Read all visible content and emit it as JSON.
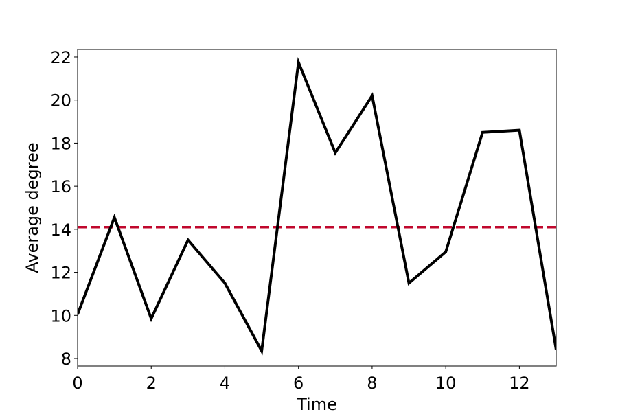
{
  "chart_data": {
    "type": "line",
    "title": "",
    "xlabel": "Time",
    "ylabel": "Average degree",
    "xlim": [
      0,
      13
    ],
    "ylim": [
      7.65,
      22.35
    ],
    "xticks": [
      0,
      2,
      4,
      6,
      8,
      10,
      12
    ],
    "yticks": [
      8,
      10,
      12,
      14,
      16,
      18,
      20,
      22
    ],
    "grid": false,
    "series": [
      {
        "color": "#000000",
        "style": "solid",
        "x": [
          0,
          1,
          2,
          3,
          4,
          5,
          6,
          7,
          8,
          9,
          10,
          11,
          12,
          13
        ],
        "y": [
          10.05,
          14.55,
          9.85,
          13.5,
          11.5,
          8.35,
          21.75,
          17.55,
          20.2,
          11.5,
          12.95,
          18.5,
          18.6,
          8.4
        ]
      }
    ],
    "reference_lines": [
      {
        "orientation": "horizontal",
        "y": 14.1,
        "color": "#c0082d",
        "style": "dashed"
      }
    ]
  }
}
